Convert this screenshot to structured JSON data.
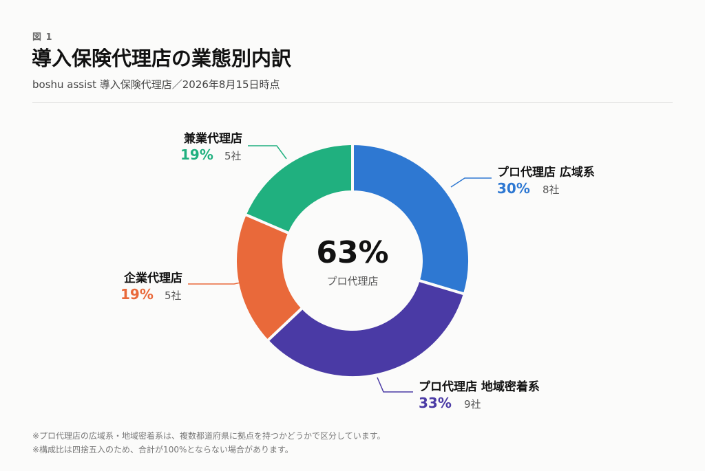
{
  "figure_label": "図 1",
  "title": "導入保険代理店の業態別内訳",
  "subtitle": "boshu assist 導入保険代理店／2026年8月15日時点",
  "center": {
    "value": "63%",
    "label": "プロ代理店"
  },
  "chart_data": {
    "type": "pie",
    "variant": "donut",
    "slices": [
      {
        "name": "プロ代理店 広域系",
        "percent": "30%",
        "count": "8社",
        "value": 8,
        "color": "#2e78d2"
      },
      {
        "name": "プロ代理店 地域密着系",
        "percent": "33%",
        "count": "9社",
        "value": 9,
        "color": "#4a3aa5"
      },
      {
        "name": "企業代理店",
        "percent": "19%",
        "count": "5社",
        "value": 5,
        "color": "#e9693a"
      },
      {
        "name": "兼業代理店",
        "percent": "19%",
        "count": "5社",
        "value": 5,
        "color": "#20b07f"
      }
    ]
  },
  "footnotes": [
    "※プロ代理店の広域系・地域密着系は、複数都道府県に拠点を持つかどうかで区分しています。",
    "※構成比は四捨五入のため、合計が100%とならない場合があります。"
  ]
}
